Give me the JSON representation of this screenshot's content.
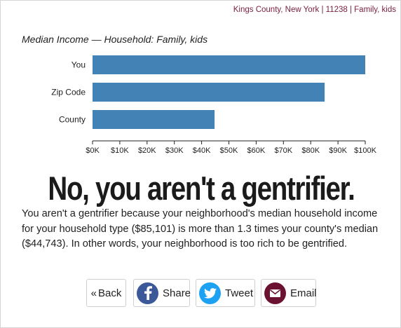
{
  "breadcrumb": "Kings County, New York | 11238 | Family, kids",
  "chart_data": {
    "type": "bar",
    "orientation": "horizontal",
    "title": "Median Income — Household: Family, kids",
    "categories": [
      "You",
      "Zip Code",
      "County"
    ],
    "values": [
      100000,
      85101,
      44743
    ],
    "xlim": [
      0,
      100000
    ],
    "xticks": [
      0,
      10000,
      20000,
      30000,
      40000,
      50000,
      60000,
      70000,
      80000,
      90000,
      100000
    ],
    "xtick_labels": [
      "$0K",
      "$10K",
      "$20K",
      "$30K",
      "$40K",
      "$50K",
      "$60K",
      "$70K",
      "$80K",
      "$90K",
      "$100K"
    ],
    "bar_color": "#4282b4",
    "grid": false
  },
  "headline": "No, you aren't a gentrifier.",
  "explanation": "You aren't a gentrifier because your neighborhood's median household income for your household type ($85,101) is more than 1.3 times your county's median ($44,743). In other words, your neighborhood is too rich to be gentrified.",
  "buttons": {
    "back": "Back",
    "share": "Share",
    "tweet": "Tweet",
    "email": "Email"
  },
  "icons": {
    "back": "chevron-left-double",
    "share": "facebook-icon",
    "tweet": "twitter-icon",
    "email": "envelope-icon"
  },
  "colors": {
    "accent": "#7a1e3f",
    "facebook": "#3b5998",
    "twitter": "#1da1f2",
    "email": "#6b1233"
  }
}
